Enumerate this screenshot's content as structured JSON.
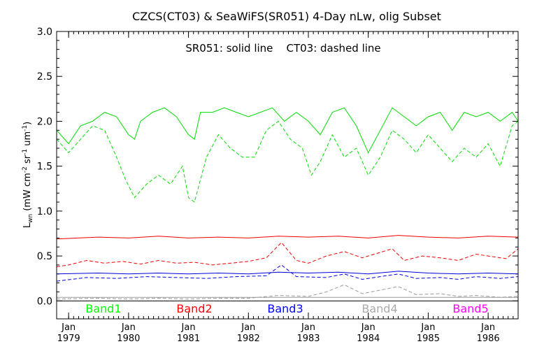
{
  "chart_data": {
    "type": "line",
    "title": "CZCS(CT03) & SeaWiFS(SR051) 4-Day nLw, olig Subset",
    "subtitle": "SR051: solid line    CT03: dashed line",
    "ylabel": "L",
    "ylabel_sub": "wn",
    "ylabel_units": "(mW cm",
    "ylabel_units_tail": "sr",
    "ylabel_units_end": "um",
    "ylabel_close": ")",
    "ylabel_exp": "-2",
    "ylabel_exp2": "-1",
    "ylabel_exp3": "-1",
    "xlim": [
      1978.8,
      1986.5
    ],
    "ylim": [
      -0.2,
      3.0
    ],
    "yticks": [
      "0.0",
      "0.5",
      "1.0",
      "1.5",
      "2.0",
      "2.5",
      "3.0"
    ],
    "xticks": [
      {
        "month": "Jan",
        "year": "1979"
      },
      {
        "month": "Jan",
        "year": "1980"
      },
      {
        "month": "Jan",
        "year": "1981"
      },
      {
        "month": "Jan",
        "year": "1982"
      },
      {
        "month": "Jan",
        "year": "1983"
      },
      {
        "month": "Jan",
        "year": "1984"
      },
      {
        "month": "Jan",
        "year": "1985"
      },
      {
        "month": "Jan",
        "year": "1986"
      }
    ],
    "band_labels": [
      {
        "text": "Band1",
        "color": "#00ff00"
      },
      {
        "text": "Band2",
        "color": "#ff0000"
      },
      {
        "text": "Band3",
        "color": "#0000ff"
      },
      {
        "text": "Band4",
        "color": "#aaaaaa"
      },
      {
        "text": "Band5",
        "color": "#ff00ff"
      }
    ],
    "series": [
      {
        "band": "Band1",
        "style": "solid",
        "color": "#00dd00",
        "x": [
          1978.8,
          1979.0,
          1979.2,
          1979.4,
          1979.6,
          1979.8,
          1980.0,
          1980.1,
          1980.2,
          1980.4,
          1980.6,
          1980.8,
          1981.0,
          1981.1,
          1981.2,
          1981.4,
          1981.6,
          1981.8,
          1982.0,
          1982.2,
          1982.4,
          1982.6,
          1982.8,
          1983.0,
          1983.2,
          1983.4,
          1983.6,
          1983.8,
          1984.0,
          1984.2,
          1984.4,
          1984.6,
          1984.8,
          1985.0,
          1985.2,
          1985.4,
          1985.6,
          1985.8,
          1986.0,
          1986.2,
          1986.4,
          1986.5
        ],
        "y": [
          1.9,
          1.75,
          1.95,
          2.0,
          2.1,
          2.05,
          1.85,
          1.8,
          2.0,
          2.1,
          2.15,
          2.05,
          1.85,
          1.8,
          2.1,
          2.1,
          2.15,
          2.1,
          2.05,
          2.1,
          2.15,
          2.0,
          2.1,
          2.0,
          1.85,
          2.1,
          2.15,
          1.95,
          1.65,
          1.9,
          2.15,
          2.05,
          1.95,
          2.05,
          2.1,
          1.9,
          2.1,
          2.05,
          2.1,
          2.0,
          2.1,
          2.0
        ]
      },
      {
        "band": "Band1",
        "style": "dashed",
        "color": "#00dd00",
        "x": [
          1978.8,
          1979.0,
          1979.2,
          1979.4,
          1979.6,
          1979.8,
          1979.95,
          1980.1,
          1980.3,
          1980.5,
          1980.7,
          1980.9,
          1981.0,
          1981.1,
          1981.3,
          1981.5,
          1981.7,
          1981.9,
          1982.1,
          1982.3,
          1982.5,
          1982.7,
          1982.9,
          1983.05,
          1983.2,
          1983.4,
          1983.6,
          1983.8,
          1984.0,
          1984.2,
          1984.4,
          1984.6,
          1984.8,
          1985.0,
          1985.2,
          1985.4,
          1985.6,
          1985.8,
          1986.0,
          1986.2,
          1986.4,
          1986.5
        ],
        "y": [
          1.8,
          1.65,
          1.8,
          1.95,
          1.9,
          1.6,
          1.35,
          1.15,
          1.3,
          1.4,
          1.3,
          1.5,
          1.15,
          1.1,
          1.6,
          1.85,
          1.7,
          1.6,
          1.6,
          1.9,
          2.0,
          1.8,
          1.7,
          1.4,
          1.55,
          1.85,
          1.6,
          1.7,
          1.4,
          1.6,
          1.9,
          1.8,
          1.65,
          1.85,
          1.7,
          1.55,
          1.7,
          1.6,
          1.75,
          1.5,
          1.95,
          2.0
        ]
      },
      {
        "band": "Band2",
        "style": "solid",
        "color": "#ee0000",
        "x": [
          1978.8,
          1979.5,
          1980.0,
          1980.5,
          1981.0,
          1981.5,
          1982.0,
          1982.5,
          1983.0,
          1983.5,
          1984.0,
          1984.5,
          1985.0,
          1985.5,
          1986.0,
          1986.5
        ],
        "y": [
          0.69,
          0.71,
          0.7,
          0.72,
          0.7,
          0.71,
          0.7,
          0.72,
          0.71,
          0.72,
          0.7,
          0.73,
          0.71,
          0.7,
          0.72,
          0.71
        ]
      },
      {
        "band": "Band2",
        "style": "dashed",
        "color": "#ee0000",
        "x": [
          1978.8,
          1979.0,
          1979.3,
          1979.6,
          1979.9,
          1980.2,
          1980.5,
          1980.8,
          1981.1,
          1981.4,
          1981.7,
          1982.0,
          1982.3,
          1982.55,
          1982.8,
          1983.0,
          1983.3,
          1983.6,
          1983.9,
          1984.1,
          1984.4,
          1984.6,
          1984.9,
          1985.2,
          1985.5,
          1985.8,
          1986.0,
          1986.3,
          1986.5
        ],
        "y": [
          0.38,
          0.4,
          0.45,
          0.42,
          0.44,
          0.41,
          0.45,
          0.42,
          0.43,
          0.4,
          0.42,
          0.44,
          0.48,
          0.65,
          0.45,
          0.42,
          0.5,
          0.55,
          0.48,
          0.52,
          0.58,
          0.45,
          0.5,
          0.48,
          0.45,
          0.52,
          0.5,
          0.47,
          0.58
        ]
      },
      {
        "band": "Band3",
        "style": "solid",
        "color": "#0000dd",
        "x": [
          1978.8,
          1979.5,
          1980.0,
          1980.5,
          1981.0,
          1981.5,
          1982.0,
          1982.5,
          1983.0,
          1983.5,
          1984.0,
          1984.5,
          1985.0,
          1985.5,
          1986.0,
          1986.5
        ],
        "y": [
          0.3,
          0.31,
          0.3,
          0.31,
          0.3,
          0.31,
          0.3,
          0.32,
          0.31,
          0.32,
          0.3,
          0.33,
          0.31,
          0.3,
          0.31,
          0.3
        ]
      },
      {
        "band": "Band3",
        "style": "dashed",
        "color": "#0000dd",
        "x": [
          1978.8,
          1979.3,
          1979.8,
          1980.3,
          1980.8,
          1981.3,
          1981.8,
          1982.3,
          1982.55,
          1982.8,
          1983.3,
          1983.6,
          1983.9,
          1984.2,
          1984.5,
          1984.8,
          1985.2,
          1985.5,
          1985.8,
          1986.2,
          1986.5
        ],
        "y": [
          0.22,
          0.26,
          0.25,
          0.27,
          0.26,
          0.25,
          0.27,
          0.28,
          0.4,
          0.27,
          0.26,
          0.3,
          0.24,
          0.27,
          0.3,
          0.25,
          0.26,
          0.24,
          0.27,
          0.25,
          0.27
        ]
      },
      {
        "band": "Band4",
        "style": "solid",
        "color": "#999999",
        "x": [
          1978.8,
          1980.0,
          1981.0,
          1982.0,
          1983.0,
          1984.0,
          1985.0,
          1986.0,
          1986.5
        ],
        "y": [
          0.04,
          0.04,
          0.04,
          0.04,
          0.04,
          0.04,
          0.04,
          0.04,
          0.04
        ]
      },
      {
        "band": "Band4",
        "style": "dashed",
        "color": "#999999",
        "x": [
          1978.8,
          1979.5,
          1980.0,
          1980.5,
          1981.0,
          1981.5,
          1982.0,
          1982.5,
          1983.0,
          1983.3,
          1983.6,
          1983.9,
          1984.2,
          1984.5,
          1984.8,
          1985.2,
          1985.5,
          1985.8,
          1986.2,
          1986.5
        ],
        "y": [
          0.02,
          0.03,
          0.02,
          0.03,
          0.02,
          0.03,
          0.03,
          0.06,
          0.05,
          0.1,
          0.18,
          0.08,
          0.12,
          0.16,
          0.07,
          0.08,
          0.05,
          0.06,
          0.04,
          0.05
        ]
      }
    ]
  }
}
